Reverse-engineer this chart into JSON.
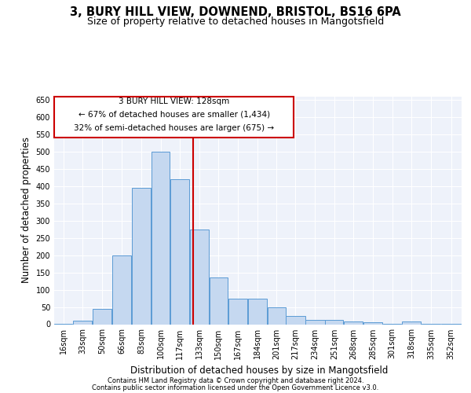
{
  "title": "3, BURY HILL VIEW, DOWNEND, BRISTOL, BS16 6PA",
  "subtitle": "Size of property relative to detached houses in Mangotsfield",
  "xlabel": "Distribution of detached houses by size in Mangotsfield",
  "ylabel": "Number of detached properties",
  "footer1": "Contains HM Land Registry data © Crown copyright and database right 2024.",
  "footer2": "Contains public sector information licensed under the Open Government Licence v3.0.",
  "annotation_title": "3 BURY HILL VIEW: 128sqm",
  "annotation_line1": "← 67% of detached houses are smaller (1,434)",
  "annotation_line2": "32% of semi-detached houses are larger (675) →",
  "bar_color": "#c5d8f0",
  "bar_edge_color": "#5b9bd5",
  "ref_line_x": 128,
  "ref_line_color": "#cc0000",
  "categories": [
    "16sqm",
    "33sqm",
    "50sqm",
    "66sqm",
    "83sqm",
    "100sqm",
    "117sqm",
    "133sqm",
    "150sqm",
    "167sqm",
    "184sqm",
    "201sqm",
    "217sqm",
    "234sqm",
    "251sqm",
    "268sqm",
    "285sqm",
    "301sqm",
    "318sqm",
    "335sqm",
    "352sqm"
  ],
  "bin_edges": [
    8,
    24,
    41,
    58,
    75,
    92,
    108,
    125,
    142,
    158,
    175,
    192,
    208,
    225,
    242,
    258,
    275,
    292,
    308,
    325,
    342,
    360
  ],
  "values": [
    2,
    10,
    45,
    200,
    395,
    500,
    420,
    275,
    135,
    75,
    75,
    50,
    25,
    12,
    12,
    8,
    5,
    2,
    8,
    2,
    2
  ],
  "ylim": [
    0,
    660
  ],
  "yticks": [
    0,
    50,
    100,
    150,
    200,
    250,
    300,
    350,
    400,
    450,
    500,
    550,
    600,
    650
  ],
  "bg_color": "#eef2fa",
  "grid_color": "#ffffff",
  "title_fontsize": 10.5,
  "subtitle_fontsize": 9,
  "axis_label_fontsize": 8.5,
  "tick_fontsize": 7,
  "footer_fontsize": 6,
  "ann_fontsize": 7.5
}
